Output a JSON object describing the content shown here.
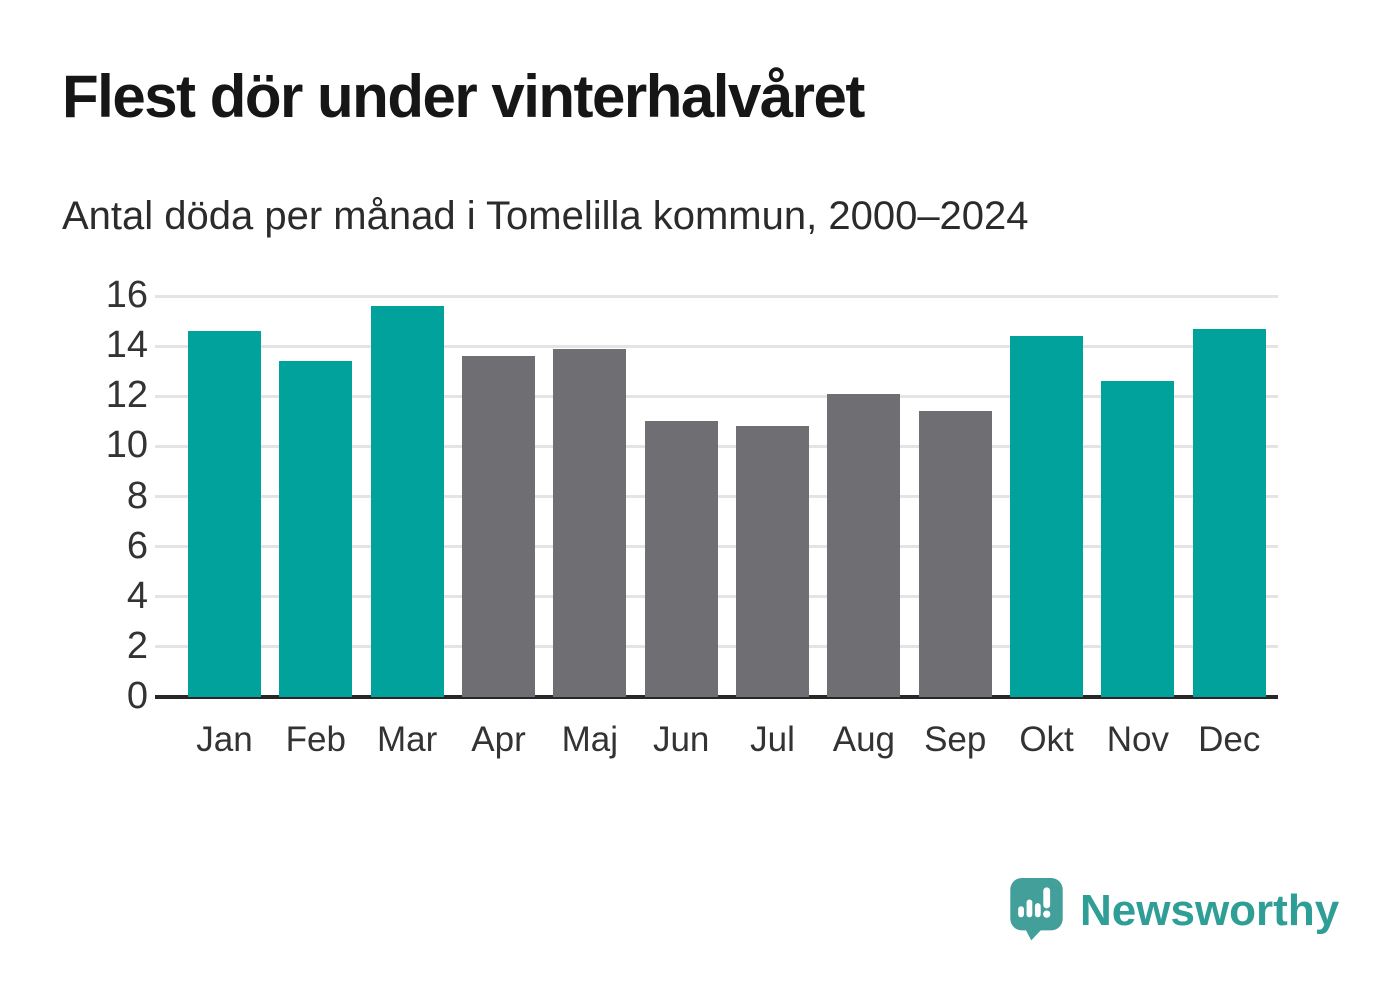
{
  "branding": {
    "name": "Newsworthy",
    "logo_icon": "speech-bubble-with-bar-chart-and-exclamation",
    "wordmark_color": "#2e9e97",
    "bubble_color": "#429f99"
  },
  "colors": {
    "highlight": "#00a29b",
    "muted": "#6f6e73",
    "gridline": "#e4e4e4",
    "axis_line": "#272727",
    "title_text": "#161616",
    "subtitle_text": "#2b2b2b",
    "tick_text": "#333333"
  },
  "chart_data": {
    "type": "bar",
    "title": "Flest dör under vinterhalvåret",
    "subtitle": "Antal döda per månad i Tomelilla kommun, 2000–2024",
    "categories": [
      "Jan",
      "Feb",
      "Mar",
      "Apr",
      "Maj",
      "Jun",
      "Jul",
      "Aug",
      "Sep",
      "Okt",
      "Nov",
      "Dec"
    ],
    "values": [
      14.6,
      13.4,
      15.6,
      13.6,
      13.9,
      11.0,
      10.8,
      12.1,
      11.4,
      14.4,
      12.6,
      14.7
    ],
    "bar_colors": [
      "highlight",
      "highlight",
      "highlight",
      "muted",
      "muted",
      "muted",
      "muted",
      "muted",
      "muted",
      "highlight",
      "highlight",
      "highlight"
    ],
    "highlighted_months": [
      "Jan",
      "Feb",
      "Mar",
      "Okt",
      "Nov",
      "Dec"
    ],
    "xlabel": "",
    "ylabel": "",
    "ylim": [
      0,
      16
    ],
    "yticks": [
      0,
      2,
      4,
      6,
      8,
      10,
      12,
      14,
      16
    ],
    "grid": "horizontal",
    "legend": "none"
  }
}
